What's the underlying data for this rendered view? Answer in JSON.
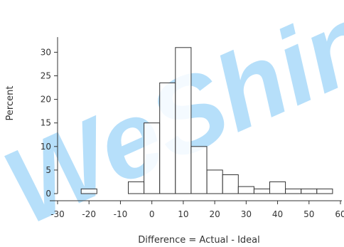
{
  "chart_data": {
    "type": "bar",
    "subtype": "histogram",
    "xlabel": "Difference = Actual - Ideal",
    "ylabel": "Percent",
    "xlim": [
      -30,
      60
    ],
    "ylim": [
      0,
      32
    ],
    "x_ticks": [
      "-30",
      "-20",
      "-10",
      "0",
      "10",
      "20",
      "30",
      "40",
      "50",
      "60"
    ],
    "y_ticks": [
      "0",
      "5",
      "10",
      "15",
      "20",
      "25",
      "30"
    ],
    "bin_width": 5,
    "bins": [
      {
        "start": -22.5,
        "end": -17.5,
        "value": 1
      },
      {
        "start": -17.5,
        "end": -12.5,
        "value": 0
      },
      {
        "start": -12.5,
        "end": -7.5,
        "value": 0
      },
      {
        "start": -7.5,
        "end": -2.5,
        "value": 2.5
      },
      {
        "start": -2.5,
        "end": 2.5,
        "value": 15
      },
      {
        "start": 2.5,
        "end": 7.5,
        "value": 23.5
      },
      {
        "start": 7.5,
        "end": 12.5,
        "value": 31
      },
      {
        "start": 12.5,
        "end": 17.5,
        "value": 10
      },
      {
        "start": 17.5,
        "end": 22.5,
        "value": 5
      },
      {
        "start": 22.5,
        "end": 27.5,
        "value": 4
      },
      {
        "start": 27.5,
        "end": 32.5,
        "value": 1.5
      },
      {
        "start": 32.5,
        "end": 37.5,
        "value": 1
      },
      {
        "start": 37.5,
        "end": 42.5,
        "value": 2.5
      },
      {
        "start": 42.5,
        "end": 47.5,
        "value": 1
      },
      {
        "start": 47.5,
        "end": 52.5,
        "value": 1
      },
      {
        "start": 52.5,
        "end": 57.5,
        "value": 1
      }
    ],
    "grid": false,
    "bar_fill": "#ffffff",
    "bar_stroke": "#333333"
  },
  "watermark": {
    "text": "WeShin",
    "color": "#2ea3f2"
  }
}
